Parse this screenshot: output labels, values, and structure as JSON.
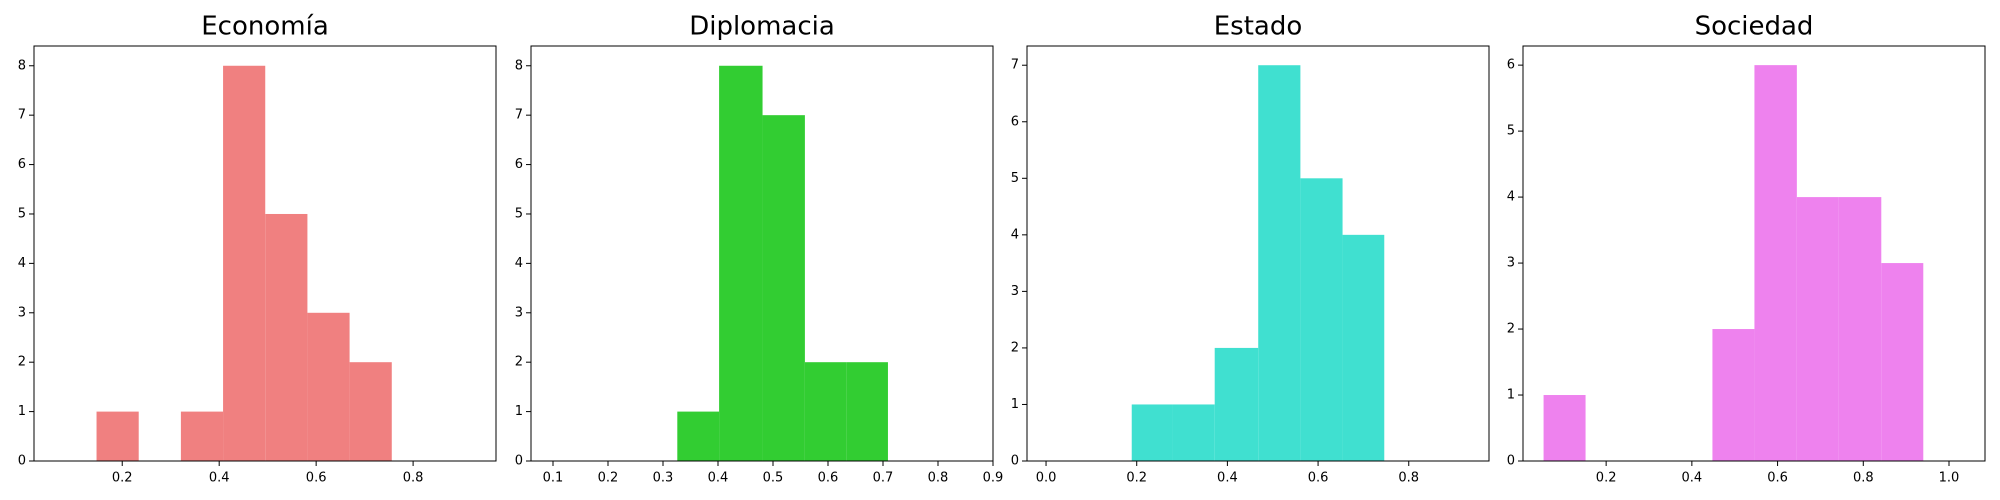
{
  "chart_data": [
    {
      "type": "histogram",
      "title": "Economía",
      "color": "#f08080",
      "bins": [
        0.147,
        0.234,
        0.321,
        0.408,
        0.495,
        0.582,
        0.669,
        0.756
      ],
      "counts": [
        1,
        0,
        1,
        8,
        5,
        3,
        2
      ],
      "xlim": [
        0.018,
        0.971
      ],
      "xticks": [
        0.2,
        0.4,
        0.6,
        0.8
      ],
      "ylim": [
        0,
        8.4
      ],
      "yticks": [
        0,
        1,
        2,
        3,
        4,
        5,
        6,
        7,
        8
      ]
    },
    {
      "type": "histogram",
      "title": "Diplomacia",
      "color": "#32cd32",
      "bins": [
        0.326,
        0.402,
        0.481,
        0.558,
        0.633,
        0.709
      ],
      "counts": [
        1,
        8,
        7,
        2,
        2
      ],
      "xlim": [
        0.06,
        0.9
      ],
      "xticks": [
        0.1,
        0.2,
        0.3,
        0.4,
        0.5,
        0.6,
        0.7,
        0.8,
        0.9
      ],
      "ylim": [
        0,
        8.4
      ],
      "yticks": [
        0,
        1,
        2,
        3,
        4,
        5,
        6,
        7,
        8
      ]
    },
    {
      "type": "histogram",
      "title": "Estado",
      "color": "#40e0d0",
      "bins": [
        0.189,
        0.279,
        0.372,
        0.468,
        0.561,
        0.654,
        0.746
      ],
      "counts": [
        1,
        1,
        2,
        7,
        5,
        4
      ],
      "xlim": [
        -0.042,
        0.977
      ],
      "xticks": [
        {
          "value": 0,
          "label": "0.0"
        },
        0.2,
        0.4,
        0.6,
        0.8
      ],
      "ylim": [
        0,
        7.34
      ],
      "yticks": [
        0,
        1,
        2,
        3,
        4,
        5,
        6,
        7
      ]
    },
    {
      "type": "histogram",
      "title": "Sociedad",
      "color": "#ee82ee",
      "bins": [
        0.054,
        0.152,
        0.25,
        0.349,
        0.448,
        0.546,
        0.645,
        0.743,
        0.842,
        0.94
      ],
      "counts": [
        1,
        0,
        0,
        0,
        2,
        6,
        4,
        4,
        3
      ],
      "xlim": [
        0.006,
        1.084
      ],
      "xticks": [
        0.2,
        0.4,
        0.6,
        0.8,
        {
          "value": 1,
          "label": "1.0"
        }
      ],
      "ylim": [
        0,
        6.29
      ],
      "yticks": [
        0,
        1,
        2,
        3,
        4,
        5,
        6
      ]
    }
  ]
}
